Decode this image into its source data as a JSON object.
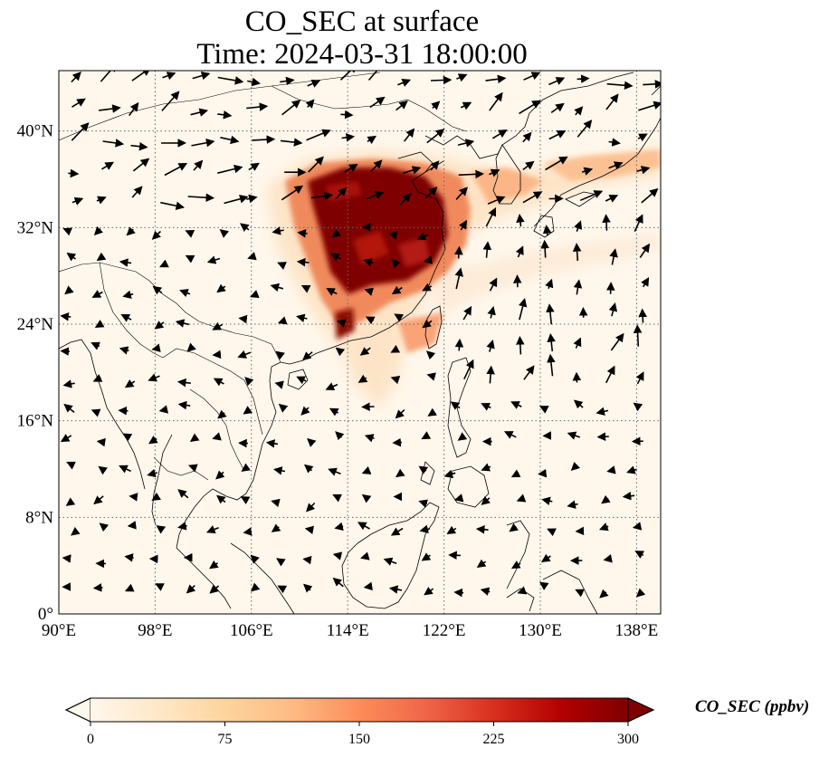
{
  "title": {
    "line1": "CO_SEC at surface",
    "line2": "Time: 2024-03-31 18:00:00"
  },
  "map": {
    "projection": "PlateCarree",
    "extent": {
      "lon_min": 90,
      "lon_max": 140,
      "lat_min": 0,
      "lat_max": 45
    },
    "gridlines": "dotted",
    "coastlines": true,
    "borders": true,
    "wind_vectors": true,
    "lon_ticks": [
      "90°E",
      "98°E",
      "106°E",
      "114°E",
      "122°E",
      "130°E",
      "138°E"
    ],
    "lat_ticks": [
      "0°",
      "8°N",
      "16°N",
      "24°N",
      "32°N",
      "40°N"
    ],
    "lon_values": [
      90,
      98,
      106,
      114,
      122,
      130,
      138
    ],
    "lat_values": [
      0,
      8,
      16,
      24,
      32,
      40
    ]
  },
  "colorbar": {
    "label": "CO_SEC (ppbv)",
    "colormap": "OrRd",
    "min": 0,
    "max": 300,
    "extend": "both",
    "ticks": [
      "0",
      "75",
      "150",
      "225",
      "300"
    ],
    "tick_values": [
      0,
      75,
      150,
      225,
      300
    ],
    "colors": [
      "#fff7ec",
      "#fee8c8",
      "#fdd49e",
      "#fdbb84",
      "#fc8d59",
      "#ef6548",
      "#d7301f",
      "#b30000",
      "#7f0000"
    ]
  }
}
